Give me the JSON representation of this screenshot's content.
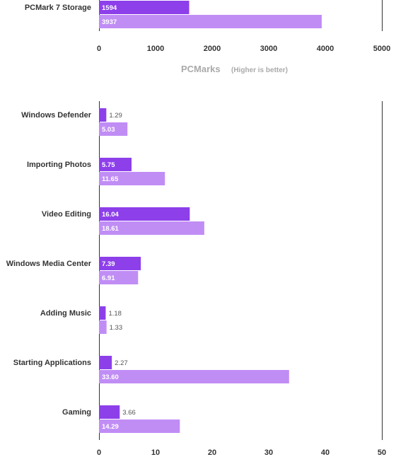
{
  "colors": {
    "series1": "#8d3fea",
    "series2": "#c08df5",
    "axis": "#333333"
  },
  "chart_data": [
    {
      "type": "bar",
      "orientation": "horizontal",
      "categories": [
        "PCMark 7 Storage"
      ],
      "series": [
        {
          "values": [
            1594
          ]
        },
        {
          "values": [
            3937
          ]
        }
      ],
      "xlim": [
        0,
        5000
      ],
      "xticks": [
        "0",
        "1000",
        "2000",
        "3000",
        "4000",
        "5000"
      ],
      "xlabel": "PCMarks",
      "xlabel_note": "(Higher is better)",
      "grid": false
    },
    {
      "type": "bar",
      "orientation": "horizontal",
      "categories": [
        "Windows Defender",
        "Importing Photos",
        "Video Editing",
        "Windows Media Center",
        "Adding Music",
        "Starting Applications",
        "Gaming"
      ],
      "series": [
        {
          "values": [
            1.29,
            5.75,
            16.04,
            7.39,
            1.18,
            2.27,
            3.66
          ],
          "labels": [
            "1.29",
            "5.75",
            "16.04",
            "7.39",
            "1.18",
            "2.27",
            "3.66"
          ]
        },
        {
          "values": [
            5.03,
            11.65,
            18.61,
            6.91,
            1.33,
            33.6,
            14.29
          ],
          "labels": [
            "5.03",
            "11.65",
            "18.61",
            "6.91",
            "1.33",
            "33.60",
            "14.29"
          ]
        }
      ],
      "xlim": [
        0,
        50
      ],
      "xticks": [
        "0",
        "10",
        "20",
        "30",
        "40",
        "50"
      ],
      "grid": false
    }
  ]
}
